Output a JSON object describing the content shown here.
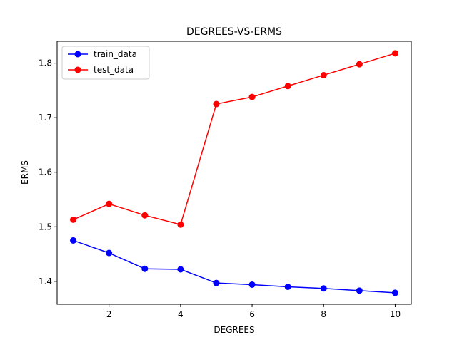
{
  "chart_data": {
    "type": "line",
    "title": "DEGREES-VS-ERMS",
    "xlabel": "DEGREES",
    "ylabel": "ERMS",
    "x": [
      1,
      2,
      3,
      4,
      5,
      6,
      7,
      8,
      9,
      10
    ],
    "xlim": [
      0.55,
      10.45
    ],
    "ylim": [
      1.358,
      1.84
    ],
    "xticks": [
      2,
      4,
      6,
      8,
      10
    ],
    "yticks": [
      1.4,
      1.5,
      1.6,
      1.7,
      1.8
    ],
    "xtick_labels": [
      "2",
      "4",
      "6",
      "8",
      "10"
    ],
    "ytick_labels": [
      "1.4",
      "1.5",
      "1.6",
      "1.7",
      "1.8"
    ],
    "grid": false,
    "legend_position": "top-left",
    "series": [
      {
        "name": "train_data",
        "color": "#0000ff",
        "values": [
          1.475,
          1.452,
          1.423,
          1.422,
          1.397,
          1.394,
          1.39,
          1.387,
          1.383,
          1.379
        ]
      },
      {
        "name": "test_data",
        "color": "#ff0000",
        "values": [
          1.513,
          1.542,
          1.521,
          1.504,
          1.725,
          1.738,
          1.758,
          1.778,
          1.798,
          1.818
        ]
      }
    ]
  }
}
